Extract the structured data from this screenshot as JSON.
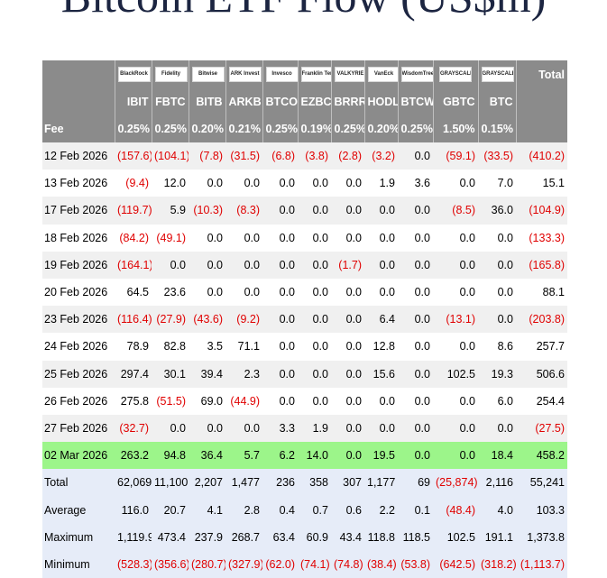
{
  "title": "Bitcoin ETF Flow (US$m)",
  "colors": {
    "header_bg": "#8b8b8b",
    "negative": "#e00000",
    "highlight": "#9cf58a",
    "summary_bg": "#e6ecf8"
  },
  "header": {
    "logos": [
      "BlackRock",
      "Fidelity",
      "Bitwise",
      "ARK Invest",
      "Invesco",
      "Franklin Templeton",
      "VALKYRIE",
      "VanEck",
      "WisdomTree",
      "GRAYSCALE",
      "GRAYSCALE"
    ],
    "total_label": "Total",
    "tickers": [
      "IBIT",
      "FBTC",
      "BITB",
      "ARKB",
      "BTCO",
      "EZBC",
      "BRRR",
      "HODL",
      "BTCW",
      "GBTC",
      "BTC"
    ],
    "fee_label": "Fee",
    "fees": [
      "0.25%",
      "0.25%",
      "0.20%",
      "0.21%",
      "0.25%",
      "0.19%",
      "0.25%",
      "0.20%",
      "0.25%",
      "1.50%",
      "0.15%"
    ]
  },
  "rows": [
    {
      "date": "12 Feb 2026",
      "values": [
        "(157.6)",
        "(104.1)",
        "(7.8)",
        "(31.5)",
        "(6.8)",
        "(3.8)",
        "(2.8)",
        "(3.2)",
        "0.0",
        "(59.1)",
        "(33.5)",
        "(410.2)"
      ]
    },
    {
      "date": "13 Feb 2026",
      "values": [
        "(9.4)",
        "12.0",
        "0.0",
        "0.0",
        "0.0",
        "0.0",
        "0.0",
        "1.9",
        "3.6",
        "0.0",
        "7.0",
        "15.1"
      ]
    },
    {
      "date": "17 Feb 2026",
      "values": [
        "(119.7)",
        "5.9",
        "(10.3)",
        "(8.3)",
        "0.0",
        "0.0",
        "0.0",
        "0.0",
        "0.0",
        "(8.5)",
        "36.0",
        "(104.9)"
      ]
    },
    {
      "date": "18 Feb 2026",
      "values": [
        "(84.2)",
        "(49.1)",
        "0.0",
        "0.0",
        "0.0",
        "0.0",
        "0.0",
        "0.0",
        "0.0",
        "0.0",
        "0.0",
        "(133.3)"
      ]
    },
    {
      "date": "19 Feb 2026",
      "values": [
        "(164.1)",
        "0.0",
        "0.0",
        "0.0",
        "0.0",
        "0.0",
        "(1.7)",
        "0.0",
        "0.0",
        "0.0",
        "0.0",
        "(165.8)"
      ]
    },
    {
      "date": "20 Feb 2026",
      "values": [
        "64.5",
        "23.6",
        "0.0",
        "0.0",
        "0.0",
        "0.0",
        "0.0",
        "0.0",
        "0.0",
        "0.0",
        "0.0",
        "88.1"
      ]
    },
    {
      "date": "23 Feb 2026",
      "values": [
        "(116.4)",
        "(27.9)",
        "(43.6)",
        "(9.2)",
        "0.0",
        "0.0",
        "0.0",
        "6.4",
        "0.0",
        "(13.1)",
        "0.0",
        "(203.8)"
      ]
    },
    {
      "date": "24 Feb 2026",
      "values": [
        "78.9",
        "82.8",
        "3.5",
        "71.1",
        "0.0",
        "0.0",
        "0.0",
        "12.8",
        "0.0",
        "0.0",
        "8.6",
        "257.7"
      ]
    },
    {
      "date": "25 Feb 2026",
      "values": [
        "297.4",
        "30.1",
        "39.4",
        "2.3",
        "0.0",
        "0.0",
        "0.0",
        "15.6",
        "0.0",
        "102.5",
        "19.3",
        "506.6"
      ]
    },
    {
      "date": "26 Feb 2026",
      "values": [
        "275.8",
        "(51.5)",
        "69.0",
        "(44.9)",
        "0.0",
        "0.0",
        "0.0",
        "0.0",
        "0.0",
        "0.0",
        "6.0",
        "254.4"
      ]
    },
    {
      "date": "27 Feb 2026",
      "values": [
        "(32.7)",
        "0.0",
        "0.0",
        "0.0",
        "3.3",
        "1.9",
        "0.0",
        "0.0",
        "0.0",
        "0.0",
        "0.0",
        "(27.5)"
      ]
    },
    {
      "date": "02 Mar 2026",
      "highlight": true,
      "values": [
        "263.2",
        "94.8",
        "36.4",
        "5.7",
        "6.2",
        "14.0",
        "0.0",
        "19.5",
        "0.0",
        "0.0",
        "18.4",
        "458.2"
      ]
    }
  ],
  "summary": [
    {
      "label": "Total",
      "values": [
        "62,069",
        "11,100",
        "2,207",
        "1,477",
        "236",
        "358",
        "307",
        "1,177",
        "69",
        "(25,874)",
        "2,116",
        "55,241"
      ]
    },
    {
      "label": "Average",
      "values": [
        "116.0",
        "20.7",
        "4.1",
        "2.8",
        "0.4",
        "0.7",
        "0.6",
        "2.2",
        "0.1",
        "(48.4)",
        "4.0",
        "103.3"
      ]
    },
    {
      "label": "Maximum",
      "values": [
        "1,119.9",
        "473.4",
        "237.9",
        "268.7",
        "63.4",
        "60.9",
        "43.4",
        "118.8",
        "118.5",
        "102.5",
        "191.1",
        "1,373.8"
      ]
    },
    {
      "label": "Minimum",
      "values": [
        "(528.3)",
        "(356.6)",
        "(280.7)",
        "(327.9)",
        "(62.0)",
        "(74.1)",
        "(74.8)",
        "(38.4)",
        "(53.8)",
        "(642.5)",
        "(318.2)",
        "(1,113.7)"
      ]
    }
  ]
}
